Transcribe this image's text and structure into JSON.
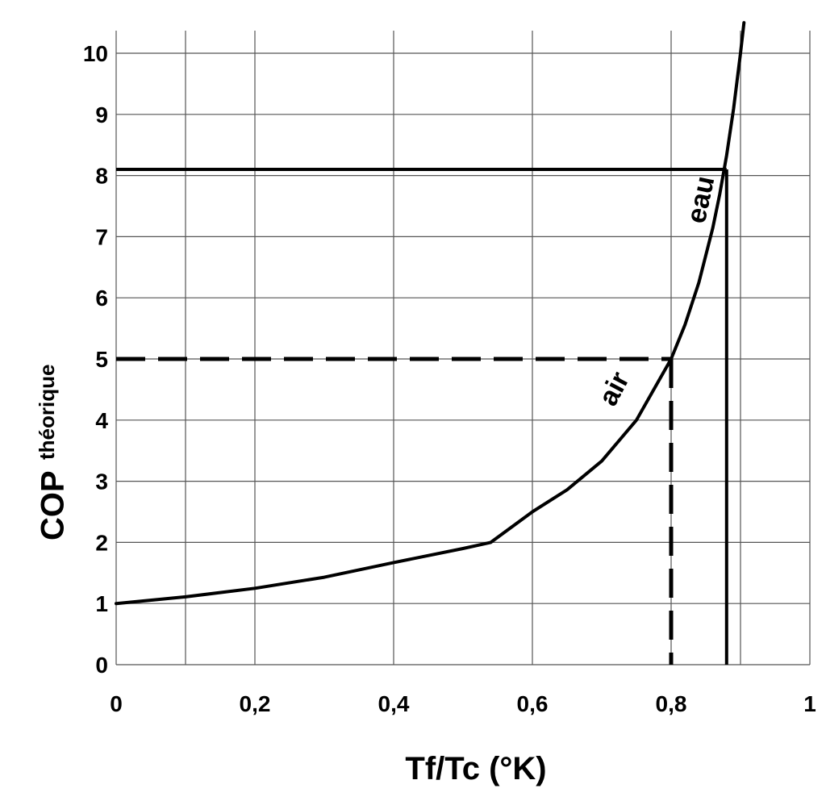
{
  "chart_data": {
    "type": "line",
    "title": "",
    "xlabel": "Tf/Tc  (°K)",
    "ylabel": "COP",
    "ylabel_subscript": "théorique",
    "xlim": [
      0,
      1
    ],
    "ylim": [
      0,
      10
    ],
    "grid": true,
    "x_ticks": [
      0,
      0.2,
      0.4,
      0.6,
      0.8,
      1
    ],
    "x_tick_labels": [
      "0",
      "0,2",
      "0,4",
      "0,6",
      "0,8",
      "1"
    ],
    "y_ticks": [
      0,
      1,
      2,
      3,
      4,
      5,
      6,
      7,
      8,
      9,
      10
    ],
    "y_tick_labels": [
      "0",
      "1",
      "2",
      "3",
      "4",
      "5",
      "6",
      "7",
      "8",
      "9",
      "10"
    ],
    "series": [
      {
        "name": "COP théorique",
        "x": [
          0,
          0.1,
          0.2,
          0.3,
          0.4,
          0.5,
          0.54,
          0.6,
          0.65,
          0.7,
          0.75,
          0.8,
          0.82,
          0.84,
          0.86,
          0.87,
          0.88,
          0.89,
          0.9,
          0.905
        ],
        "values": [
          1.0,
          1.11,
          1.25,
          1.43,
          1.67,
          1.9,
          2.0,
          2.5,
          2.86,
          3.33,
          4.0,
          5.0,
          5.56,
          6.25,
          7.14,
          7.69,
          8.33,
          9.09,
          10.0,
          10.5
        ]
      }
    ],
    "reference_lines": [
      {
        "name": "air-reference",
        "x": 0.8,
        "y": 5,
        "style": "dashed"
      },
      {
        "name": "eau-reference",
        "x": 0.88,
        "y": 8.1,
        "style": "solid"
      }
    ],
    "annotations": [
      {
        "name": "air-label",
        "text": "air",
        "x": 0.72,
        "y": 4.5
      },
      {
        "name": "eau-label",
        "text": "eau",
        "x": 0.845,
        "y": 7.6
      }
    ]
  }
}
